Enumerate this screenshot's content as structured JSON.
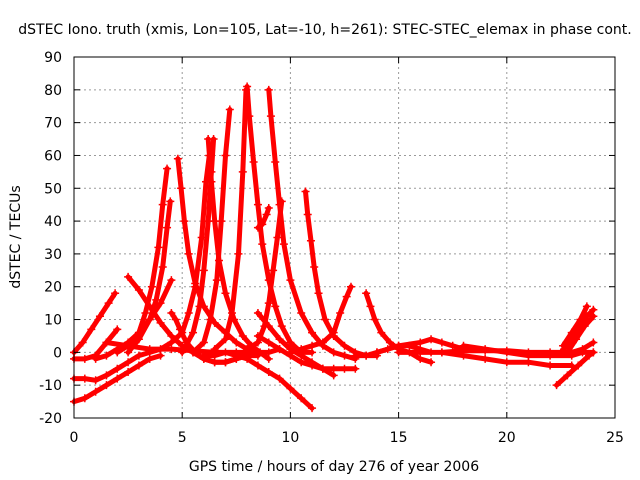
{
  "chart_data": {
    "type": "line",
    "title": "dSTEC Iono. truth (xmis, Lon=105, Lat=-10, h=261): STEC-STEC_elemax in phase cont.",
    "xlabel": "GPS time / hours of day 276 of year 2006",
    "ylabel": "dSTEC  / TECUs",
    "xlim": [
      0,
      25
    ],
    "ylim": [
      -20,
      90
    ],
    "x_ticks": [
      0,
      5,
      10,
      15,
      20,
      25
    ],
    "y_ticks": [
      -20,
      -10,
      0,
      10,
      20,
      30,
      40,
      50,
      60,
      70,
      80,
      90
    ],
    "grid": true,
    "color": "#ff0000",
    "marker": "plus",
    "series": [
      {
        "x": [
          0.0,
          0.4,
          0.8,
          1.2,
          1.6,
          1.9
        ],
        "y": [
          0.0,
          3,
          7,
          11,
          15,
          18
        ]
      },
      {
        "x": [
          0.0,
          0.5,
          1.0,
          1.5,
          2.0
        ],
        "y": [
          -2,
          -2,
          -1,
          3,
          7
        ]
      },
      {
        "x": [
          0.0,
          0.5,
          1.0,
          1.5,
          2.0,
          2.5,
          3.0,
          3.5
        ],
        "y": [
          -8,
          -8,
          -8.5,
          -7,
          -5,
          -3,
          -1,
          0
        ]
      },
      {
        "x": [
          0.0,
          0.5,
          1.0,
          1.5,
          2.0,
          2.5,
          3.0,
          3.5,
          4.0
        ],
        "y": [
          -15,
          -14,
          -12,
          -10,
          -8,
          -6,
          -4,
          -2,
          -1
        ]
      },
      {
        "x": [
          1.5,
          2.5,
          3.5,
          4.5,
          5.5,
          6.5,
          7.5,
          8.5
        ],
        "y": [
          3,
          2,
          1,
          1,
          0.5,
          0,
          0,
          0
        ]
      },
      {
        "x": [
          2.5,
          3.0,
          3.5,
          4.0,
          4.5,
          5.0,
          5.5,
          6.0,
          6.5,
          7.0,
          7.5,
          8.0,
          8.5
        ],
        "y": [
          23,
          19,
          14,
          9,
          5,
          2,
          0,
          -2,
          -3,
          -3,
          -2,
          -1,
          -1
        ]
      },
      {
        "x": [
          1.0,
          1.5,
          2.0,
          2.5,
          3.0,
          3.5,
          4.0,
          4.5
        ],
        "y": [
          -2,
          -1,
          1,
          3,
          6,
          10,
          15,
          22
        ]
      },
      {
        "x": [
          2.0,
          2.5,
          3.0,
          3.3,
          3.6,
          3.9,
          4.1,
          4.3
        ],
        "y": [
          0,
          2,
          6,
          12,
          20,
          32,
          45,
          56
        ]
      },
      {
        "x": [
          2.5,
          3.0,
          3.5,
          3.8,
          4.1,
          4.3,
          4.45
        ],
        "y": [
          0,
          4,
          10,
          16,
          26,
          38,
          46
        ]
      },
      {
        "x": [
          4.5,
          4.7,
          4.9,
          5.2,
          5.6,
          6.0,
          6.5,
          7.0,
          7.5,
          8.0,
          8.5,
          9.0,
          9.5
        ],
        "y": [
          12,
          10,
          7,
          3,
          0,
          -2,
          -3,
          -3,
          -2,
          -1,
          0,
          0,
          1
        ]
      },
      {
        "x": [
          4.8,
          4.95,
          5.1,
          5.3,
          5.6,
          6.0,
          6.5,
          7.0,
          7.5,
          8.0,
          8.5
        ],
        "y": [
          59,
          50,
          40,
          30,
          21,
          14,
          9,
          6,
          3,
          1,
          0
        ]
      },
      {
        "x": [
          3.5,
          4.0,
          4.5,
          5.0,
          5.3,
          5.6,
          5.9,
          6.1,
          6.25
        ],
        "y": [
          0,
          1,
          3,
          6,
          12,
          20,
          35,
          52,
          60
        ]
      },
      {
        "x": [
          5.0,
          5.5,
          5.8,
          6.0,
          6.2,
          6.35,
          6.45
        ],
        "y": [
          0,
          6,
          14,
          25,
          40,
          55,
          65
        ]
      },
      {
        "x": [
          6.2,
          6.35,
          6.5,
          6.7,
          7.0,
          7.4,
          7.8,
          8.2,
          8.6,
          9.0
        ],
        "y": [
          65,
          52,
          40,
          28,
          18,
          10,
          5,
          2,
          0,
          -2
        ]
      },
      {
        "x": [
          5.5,
          6.0,
          6.3,
          6.6,
          6.8,
          7.0,
          7.2
        ],
        "y": [
          0,
          3,
          10,
          22,
          40,
          60,
          74
        ]
      },
      {
        "x": [
          6.0,
          6.5,
          7.0,
          7.5,
          8.0,
          8.5,
          9.0,
          9.5,
          10.0,
          10.5,
          11.0
        ],
        "y": [
          -1,
          -1,
          0,
          -1,
          -2,
          -4,
          -6,
          -8,
          -11,
          -14,
          -17
        ]
      },
      {
        "x": [
          8.0,
          8.1,
          8.3,
          8.5,
          8.7,
          9.0,
          9.3,
          9.6,
          10.0,
          10.5,
          11.0
        ],
        "y": [
          81,
          72,
          58,
          45,
          33,
          22,
          14,
          8,
          3,
          0,
          0
        ]
      },
      {
        "x": [
          6.5,
          7.0,
          7.3,
          7.6,
          7.8,
          7.95
        ],
        "y": [
          1,
          4,
          12,
          30,
          55,
          80
        ]
      },
      {
        "x": [
          8.5,
          8.7,
          8.9,
          9.0
        ],
        "y": [
          38,
          39,
          42,
          44
        ]
      },
      {
        "x": [
          9.0,
          9.1,
          9.3,
          9.5,
          9.7,
          10.0,
          10.5,
          11.0,
          11.5,
          12.0,
          12.5,
          13.0
        ],
        "y": [
          80,
          72,
          58,
          45,
          33,
          22,
          12,
          6,
          2,
          0,
          -1,
          -2
        ]
      },
      {
        "x": [
          8.0,
          8.5,
          8.8,
          9.0,
          9.2,
          9.4,
          9.6
        ],
        "y": [
          1,
          3,
          8,
          15,
          25,
          35,
          46
        ]
      },
      {
        "x": [
          8.5,
          9.0,
          9.5,
          10.0,
          10.5,
          11.0,
          11.5,
          12.0,
          12.5,
          13.0
        ],
        "y": [
          5,
          3,
          1,
          -1,
          -3,
          -4,
          -5,
          -5,
          -5,
          -5
        ]
      },
      {
        "x": [
          8.5,
          9.0,
          9.5,
          10.0,
          10.5,
          11.0,
          11.5,
          12.0
        ],
        "y": [
          12,
          8,
          4,
          1,
          -1,
          -3,
          -5,
          -7
        ]
      },
      {
        "x": [
          10.7,
          10.8,
          10.95,
          11.1,
          11.3,
          11.6,
          12.0,
          12.5,
          13.0,
          13.5,
          14.0
        ],
        "y": [
          49,
          42,
          34,
          26,
          18,
          10,
          5,
          2,
          0,
          -1,
          -1
        ]
      },
      {
        "x": [
          10.0,
          10.5,
          11.0,
          11.5,
          12.0,
          12.3,
          12.6,
          12.8
        ],
        "y": [
          0,
          1,
          2,
          3,
          6,
          12,
          17,
          20
        ]
      },
      {
        "x": [
          13.5,
          13.7,
          13.9,
          14.2,
          14.6,
          15.0,
          15.5,
          16.0,
          16.5
        ],
        "y": [
          18,
          14,
          10,
          6,
          3,
          1,
          0,
          -2,
          -3
        ]
      },
      {
        "x": [
          13.0,
          13.5,
          14.0,
          14.5,
          15.0,
          15.5,
          16.0,
          16.5
        ],
        "y": [
          -1,
          -1,
          0,
          1,
          2,
          2,
          1,
          0
        ]
      },
      {
        "x": [
          14.0,
          15.0,
          16.0,
          16.5,
          17.0,
          17.5,
          18.0
        ],
        "y": [
          0,
          2,
          3,
          4,
          3,
          2,
          1
        ]
      },
      {
        "x": [
          15.0,
          16.0,
          17.0,
          18.0,
          19.0,
          20.0,
          21.0,
          22.0,
          23.0,
          24.0
        ],
        "y": [
          0,
          0,
          0,
          0.5,
          0.5,
          0.5,
          0,
          0,
          0,
          0
        ]
      },
      {
        "x": [
          18.0,
          19.0,
          20.0,
          21.0,
          22.0,
          23.0,
          23.5
        ],
        "y": [
          2,
          1,
          0,
          -1,
          -1,
          -1,
          0
        ]
      },
      {
        "x": [
          17.0,
          18.0,
          19.0,
          20.0,
          21.0,
          22.0,
          23.0
        ],
        "y": [
          0,
          -1,
          -2,
          -3,
          -3,
          -4,
          -4
        ]
      },
      {
        "x": [
          22.3,
          22.8,
          23.3,
          23.8,
          24.0
        ],
        "y": [
          -10,
          -7,
          -4,
          -1,
          0
        ]
      },
      {
        "x": [
          22.5,
          23.0,
          23.4,
          23.7,
          24.0
        ],
        "y": [
          0,
          4,
          8,
          11,
          13
        ]
      },
      {
        "x": [
          22.6,
          23.0,
          23.4,
          23.7
        ],
        "y": [
          2,
          6,
          10,
          14
        ]
      },
      {
        "x": [
          22.8,
          23.2,
          23.6,
          24.0
        ],
        "y": [
          0,
          4,
          8,
          11
        ]
      },
      {
        "x": [
          23.0,
          23.5,
          24.0
        ],
        "y": [
          0,
          1,
          3
        ]
      }
    ]
  }
}
